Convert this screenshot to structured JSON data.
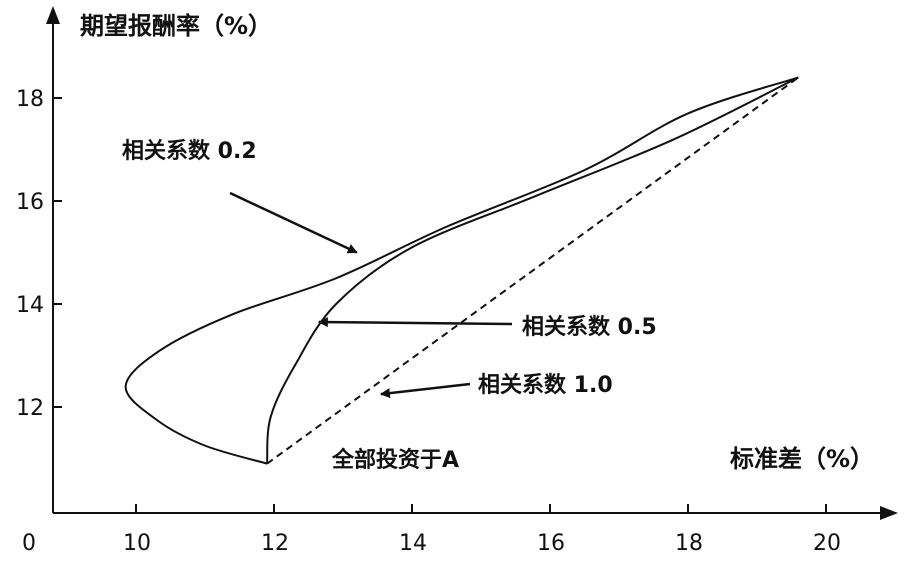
{
  "chart_data": {
    "type": "line",
    "title": "",
    "ylabel": "期望报酬率（%）",
    "xlabel": "标准差（%）",
    "origin_label": "0",
    "xlim": [
      8,
      21
    ],
    "ylim": [
      10.9,
      19.6
    ],
    "x_ticks": [
      10,
      12,
      14,
      16,
      18,
      20
    ],
    "y_ticks": [
      12,
      14,
      16,
      18
    ],
    "point_a_label": "全部投资于A",
    "series": [
      {
        "name": "相关系数 0.2",
        "line_style": "solid",
        "points": [
          [
            11.9,
            10.9
          ],
          [
            11.0,
            11.25
          ],
          [
            10.3,
            11.75
          ],
          [
            9.85,
            12.4
          ],
          [
            10.35,
            13.1
          ],
          [
            11.4,
            13.8
          ],
          [
            12.9,
            14.5
          ],
          [
            14.5,
            15.5
          ],
          [
            16.5,
            16.6
          ],
          [
            18.0,
            17.7
          ],
          [
            19.6,
            18.4
          ]
        ]
      },
      {
        "name": "相关系数 0.5",
        "line_style": "solid",
        "points": [
          [
            11.9,
            10.9
          ],
          [
            11.95,
            11.8
          ],
          [
            12.3,
            12.8
          ],
          [
            12.9,
            14.0
          ],
          [
            14.0,
            15.1
          ],
          [
            15.8,
            16.1
          ],
          [
            17.8,
            17.2
          ],
          [
            19.6,
            18.4
          ]
        ]
      },
      {
        "name": "相关系数 1.0",
        "line_style": "dashed",
        "points": [
          [
            11.9,
            10.9
          ],
          [
            19.6,
            18.4
          ]
        ]
      }
    ],
    "annotations": [
      {
        "text": "相关系数 0.2",
        "arrow_to": [
          13.2,
          15.0
        ]
      },
      {
        "text": "相关系数 0.5",
        "arrow_to": [
          12.65,
          13.65
        ]
      },
      {
        "text": "相关系数 1.0",
        "arrow_to": [
          13.55,
          12.25
        ]
      }
    ],
    "grid": false,
    "legend": "none"
  }
}
